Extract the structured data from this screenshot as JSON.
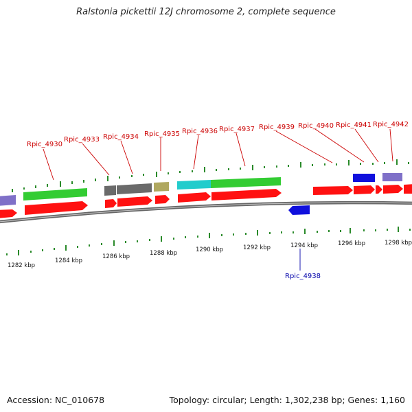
{
  "title": "Ralstonia pickettii 12J chromosome 2, complete sequence",
  "footer": {
    "accession": "Accession: NC_010678",
    "summary": "Topology: circular; Length: 1,302,238 bp; Genes: 1,160"
  },
  "scale_labels": [
    "1282 kbp",
    "1284 kbp",
    "1286 kbp",
    "1288 kbp",
    "1290 kbp",
    "1292 kbp",
    "1294 kbp",
    "1296 kbp",
    "1298 kbp"
  ],
  "gene_labels": [
    "Rpic_4930",
    "Rpic_4933",
    "Rpic_4934",
    "Rpic_4935",
    "Rpic_4936",
    "Rpic_4937",
    "Rpic_4939",
    "Rpic_4940",
    "Rpic_4941",
    "Rpic_4942",
    "Rpic_4938"
  ],
  "colors": {
    "label_forward": "#cc0000",
    "label_reverse": "#0000aa",
    "cds": "#ff1111",
    "gene_green": "#33cc33",
    "gene_gray": "#6a6a6a",
    "gene_khaki": "#b0a860",
    "gene_cyan": "#22cccc",
    "gene_blue": "#1010dd",
    "gene_lavender": "#7f70c8",
    "tick": "#2a8a2a",
    "backbone": "#777777"
  }
}
